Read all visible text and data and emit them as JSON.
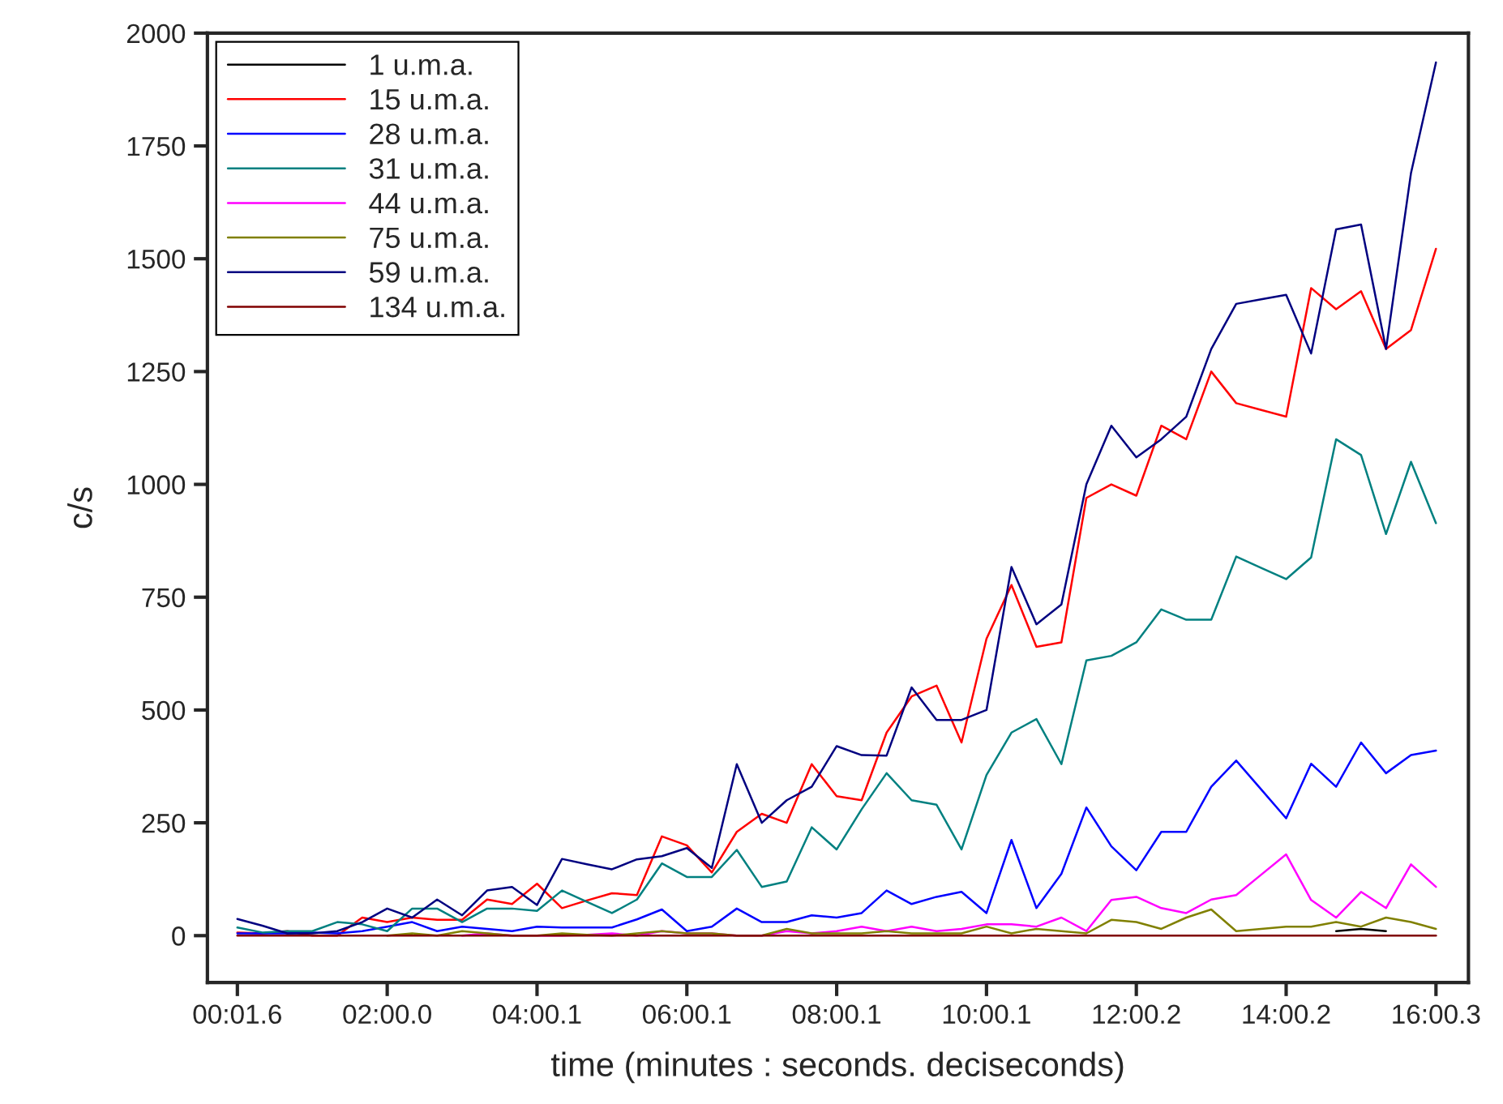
{
  "chart_data": {
    "type": "line",
    "xlabel": "time (minutes : seconds. deciseconds)",
    "ylabel": "c/s",
    "categories": [
      "00:01.6",
      null,
      null,
      null,
      null,
      null,
      "02:00.0",
      null,
      null,
      null,
      null,
      null,
      "04:00.1",
      null,
      null,
      null,
      null,
      null,
      "06:00.1",
      null,
      null,
      null,
      null,
      null,
      "08:00.1",
      null,
      null,
      null,
      null,
      null,
      "10:00.1",
      null,
      null,
      null,
      null,
      null,
      "12:00.2",
      null,
      null,
      null,
      null,
      null,
      "14:00.2",
      null,
      null,
      null,
      null,
      null,
      "16:00.3"
    ],
    "ylim": [
      -104,
      2000
    ],
    "yticks": [
      0,
      250,
      500,
      750,
      1000,
      1250,
      1500,
      1750,
      2000
    ],
    "grid": false,
    "legend": "top left",
    "series": [
      {
        "name": "1 u.m.a.",
        "color": "#000000",
        "values": [
          null,
          null,
          null,
          null,
          null,
          null,
          null,
          null,
          null,
          null,
          null,
          null,
          null,
          null,
          null,
          null,
          null,
          null,
          null,
          null,
          null,
          null,
          null,
          null,
          null,
          null,
          null,
          null,
          null,
          null,
          null,
          null,
          null,
          null,
          null,
          null,
          null,
          null,
          null,
          null,
          null,
          null,
          null,
          null,
          10,
          15,
          10,
          null,
          null
        ]
      },
      {
        "name": "15 u.m.a.",
        "color": "#ff0000",
        "values": [
          7,
          5,
          10,
          0,
          0,
          40,
          30,
          40,
          35,
          35,
          80,
          70,
          115,
          61,
          78,
          94,
          90,
          220,
          200,
          140,
          230,
          270,
          250,
          380,
          309,
          300,
          450,
          530,
          554,
          428,
          658,
          777,
          640,
          650,
          970,
          1000,
          975,
          1130,
          1100,
          1250,
          1180,
          1165,
          1150,
          1435,
          1388,
          1428,
          1300,
          1342,
          1522
        ]
      },
      {
        "name": "28 u.m.a.",
        "color": "#0000ff",
        "values": [
          5,
          5,
          5,
          7,
          5,
          10,
          20,
          30,
          10,
          20,
          15,
          10,
          20,
          18,
          18,
          18,
          36,
          58,
          10,
          20,
          60,
          30,
          30,
          45,
          40,
          50,
          100,
          70,
          86,
          97,
          50,
          212,
          61,
          137,
          284,
          198,
          145,
          230,
          230,
          330,
          388,
          324,
          260,
          381,
          330,
          428,
          360,
          400,
          410
        ]
      },
      {
        "name": "31 u.m.a.",
        "color": "#008080",
        "values": [
          18,
          7,
          10,
          10,
          30,
          25,
          10,
          60,
          60,
          30,
          60,
          60,
          55,
          100,
          75,
          50,
          80,
          160,
          130,
          130,
          190,
          108,
          120,
          240,
          191,
          280,
          360,
          300,
          290,
          191,
          356,
          450,
          480,
          380,
          610,
          620,
          650,
          723,
          700,
          700,
          840,
          815,
          790,
          838,
          1100,
          1065,
          890,
          1050,
          914
        ]
      },
      {
        "name": "44 u.m.a.",
        "color": "#ff00ff",
        "values": [
          null,
          null,
          null,
          null,
          null,
          null,
          null,
          null,
          null,
          0,
          5,
          0,
          0,
          0,
          2,
          5,
          0,
          10,
          5,
          5,
          0,
          0,
          10,
          5,
          10,
          20,
          10,
          20,
          10,
          15,
          25,
          25,
          20,
          40,
          10,
          79,
          86,
          61,
          50,
          80,
          90,
          135,
          180,
          79,
          40,
          97,
          61,
          158,
          108
        ]
      },
      {
        "name": "75 u.m.a.",
        "color": "#808000",
        "values": [
          null,
          null,
          null,
          null,
          null,
          null,
          0,
          5,
          0,
          10,
          5,
          0,
          0,
          5,
          2,
          0,
          5,
          10,
          5,
          5,
          0,
          0,
          15,
          5,
          5,
          5,
          10,
          5,
          5,
          5,
          20,
          5,
          15,
          10,
          5,
          35,
          30,
          15,
          40,
          58,
          10,
          15,
          20,
          20,
          30,
          20,
          40,
          30,
          15
        ]
      },
      {
        "name": "59 u.m.a.",
        "color": "#000080",
        "values": [
          37,
          22,
          5,
          5,
          10,
          30,
          60,
          40,
          80,
          45,
          100,
          108,
          68,
          170,
          158,
          147,
          169,
          176,
          194,
          150,
          380,
          250,
          300,
          330,
          420,
          400,
          399,
          550,
          478,
          478,
          500,
          817,
          690,
          734,
          1000,
          1130,
          1060,
          1100,
          1150,
          1300,
          1400,
          1410,
          1420,
          1290,
          1565,
          1576,
          1300,
          1690,
          1935
        ]
      },
      {
        "name": "134 u.m.a.",
        "color": "#800000",
        "values": [
          0,
          0,
          0,
          0,
          0,
          0,
          0,
          0,
          0,
          0,
          0,
          0,
          0,
          0,
          0,
          0,
          0,
          0,
          0,
          0,
          0,
          0,
          0,
          0,
          0,
          0,
          0,
          0,
          0,
          0,
          0,
          0,
          0,
          0,
          0,
          0,
          0,
          0,
          0,
          0,
          0,
          0,
          0,
          0,
          0,
          0,
          0,
          0,
          0
        ]
      }
    ]
  }
}
